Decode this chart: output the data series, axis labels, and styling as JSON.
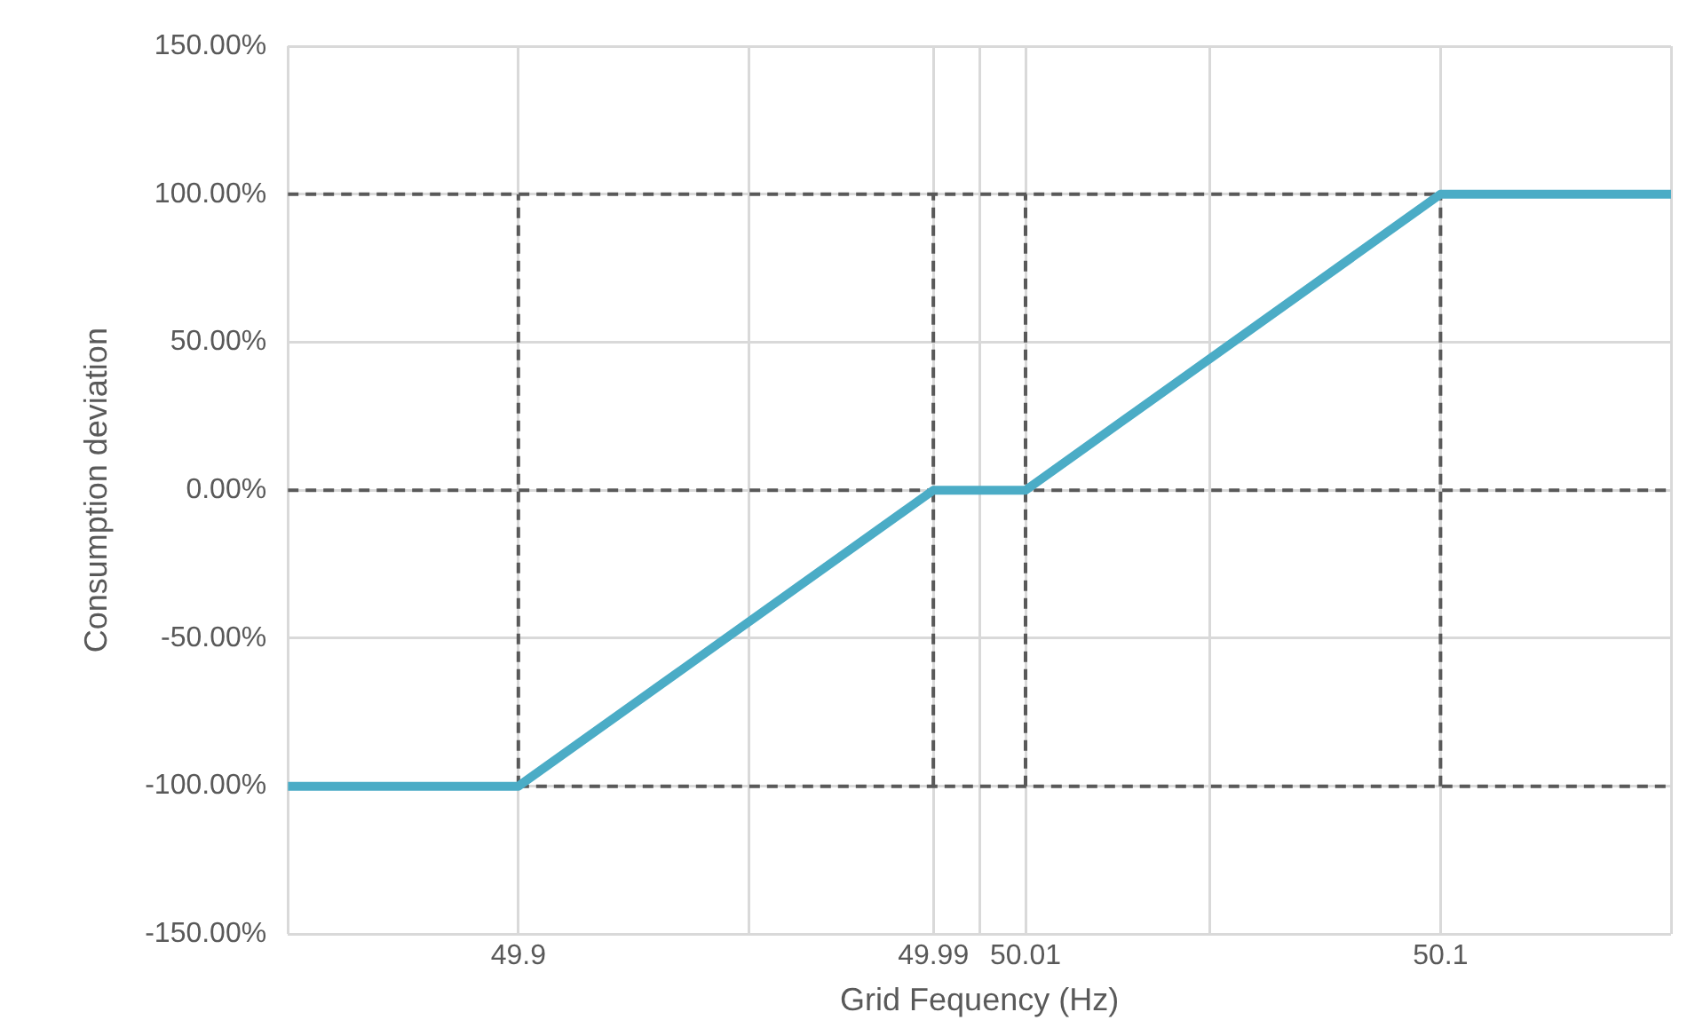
{
  "chart_data": {
    "type": "line",
    "xlabel": "Grid Fequency (Hz)",
    "ylabel": "Consumption deviation",
    "xlim": [
      49.85,
      50.15
    ],
    "xticks": [
      {
        "value": 49.85,
        "label": null
      },
      49.9,
      {
        "value": 49.95,
        "label": null
      },
      49.99,
      {
        "value": 50,
        "label": null
      },
      50.01,
      {
        "value": 50.05,
        "label": null
      },
      50.1,
      {
        "value": 50.15,
        "label": null
      }
    ],
    "ylim": [
      -150,
      150
    ],
    "yticks": [
      {
        "value": -150,
        "label": "-150.00%"
      },
      {
        "value": -100,
        "label": "-100.00%"
      },
      {
        "value": -50,
        "label": "-50.00%"
      },
      {
        "value": 0,
        "label": "0.00%"
      },
      {
        "value": 50,
        "label": "50.00%"
      },
      {
        "value": 100,
        "label": "100.00%"
      },
      {
        "value": 150,
        "label": "150.00%"
      }
    ],
    "grid": true,
    "legend": false,
    "marker": "none",
    "series": [
      {
        "color": "#595959",
        "line_style": "dashed",
        "x": [
          49.85,
          50.1
        ],
        "values": [
          100,
          100
        ]
      },
      {
        "color": "#595959",
        "line_style": "dashed",
        "x": [
          49.85,
          50.15
        ],
        "values": [
          0,
          0
        ]
      },
      {
        "color": "#595959",
        "line_style": "dashed",
        "x": [
          49.9,
          50.15
        ],
        "values": [
          -100,
          -100
        ]
      },
      {
        "color": "#595959",
        "line_style": "dashed",
        "x": [
          49.9,
          49.9
        ],
        "values": [
          -100,
          100
        ]
      },
      {
        "color": "#595959",
        "line_style": "dashed",
        "x": [
          49.99,
          49.99
        ],
        "values": [
          -100,
          100
        ]
      },
      {
        "color": "#595959",
        "line_style": "dashed",
        "x": [
          50.01,
          50.01
        ],
        "values": [
          -100,
          100
        ]
      },
      {
        "color": "#595959",
        "line_style": "dashed",
        "x": [
          50.1,
          50.1
        ],
        "values": [
          -100,
          100
        ]
      },
      {
        "color": "#4bacc6",
        "line_style": "solid",
        "x": [
          49.85,
          49.9,
          49.99,
          50.01,
          50.1,
          50.15
        ],
        "values": [
          -100,
          -100,
          0,
          0,
          100,
          100
        ]
      }
    ]
  }
}
